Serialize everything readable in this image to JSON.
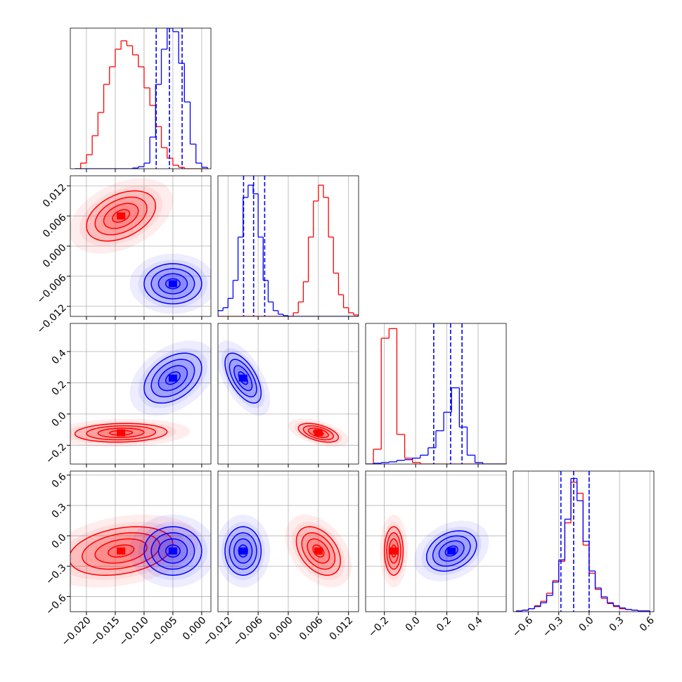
{
  "chart_data": {
    "type": "corner",
    "series": [
      {
        "color": "#ff0000"
      },
      {
        "color": "#0000ff"
      }
    ],
    "params": [
      {
        "lim": [
          -0.0228,
          0.0016
        ],
        "ticks": [
          {
            "value": -0.02,
            "label": "−0.020"
          },
          {
            "value": -0.015,
            "label": "−0.015"
          },
          {
            "value": -0.01,
            "label": "−0.010"
          },
          {
            "value": -0.005,
            "label": "−0.005"
          },
          {
            "value": 0,
            "label": "0.000"
          }
        ]
      },
      {
        "lim": [
          -0.014,
          0.014
        ],
        "ticks": [
          {
            "value": -0.012,
            "label": "−0.012"
          },
          {
            "value": -0.006,
            "label": "−0.006"
          },
          {
            "value": 0,
            "label": "0.000"
          },
          {
            "value": 0.006,
            "label": "0.006"
          },
          {
            "value": 0.012,
            "label": "0.012"
          }
        ]
      },
      {
        "lim": [
          -0.32,
          0.58
        ],
        "ticks": [
          {
            "value": -0.2,
            "label": "−0.2"
          },
          {
            "value": 0,
            "label": "0.0"
          },
          {
            "value": 0.2,
            "label": "0.2"
          },
          {
            "value": 0.4,
            "label": "0.4"
          }
        ]
      },
      {
        "lim": [
          -0.75,
          0.64
        ],
        "ticks": [
          {
            "value": -0.6,
            "label": "−0.6"
          },
          {
            "value": -0.3,
            "label": "−0.3"
          },
          {
            "value": 0,
            "label": "0.0"
          },
          {
            "value": 0.3,
            "label": "0.3"
          },
          {
            "value": 0.6,
            "label": "0.6"
          }
        ]
      }
    ],
    "histograms": [
      {
        "ylim": [
          0,
          200
        ],
        "bins": [
          -0.022,
          -0.021,
          -0.02,
          -0.019,
          -0.018,
          -0.017,
          -0.016,
          -0.015,
          -0.014,
          -0.013,
          -0.012,
          -0.011,
          -0.01,
          -0.009,
          -0.008,
          -0.007,
          -0.006,
          -0.005,
          -0.004,
          -0.003,
          -0.002,
          -0.001,
          0,
          0.001
        ],
        "counts": [
          [
            0,
            8,
            20,
            47,
            80,
            120,
            145,
            170,
            182,
            175,
            162,
            145,
            115,
            90,
            60,
            30,
            15,
            5,
            2,
            0,
            0,
            0,
            0
          ],
          [
            0,
            0,
            0,
            0,
            0,
            0,
            0,
            0,
            0,
            0,
            1,
            3,
            8,
            45,
            120,
            170,
            200,
            195,
            150,
            95,
            35,
            8,
            2
          ]
        ],
        "quantiles": [
          -0.0079,
          -0.0056,
          -0.0034
        ]
      },
      {
        "ylim": [
          0,
          195
        ],
        "bins": [
          -0.014,
          -0.013,
          -0.012,
          -0.011,
          -0.01,
          -0.009,
          -0.008,
          -0.007,
          -0.006,
          -0.005,
          -0.004,
          -0.003,
          -0.002,
          -0.001,
          0,
          0.001,
          0.002,
          0.003,
          0.004,
          0.005,
          0.006,
          0.007,
          0.008,
          0.009,
          0.01,
          0.011,
          0.012,
          0.013,
          0.014
        ],
        "counts": [
          [
            0,
            0,
            0,
            0,
            0,
            0,
            0,
            0,
            0,
            0,
            0,
            0,
            0,
            0,
            0,
            5,
            20,
            48,
            110,
            160,
            182,
            165,
            110,
            60,
            30,
            12,
            5,
            2
          ],
          [
            8,
            12,
            25,
            50,
            110,
            165,
            182,
            170,
            110,
            50,
            20,
            8,
            3,
            1,
            0,
            0,
            0,
            0,
            0,
            0,
            0,
            0,
            0,
            0,
            0,
            0,
            0,
            0
          ]
        ],
        "quantiles": [
          -0.0089,
          -0.0069,
          -0.0047
        ]
      },
      {
        "ylim": [
          0,
          190
        ],
        "bins": [
          -0.32,
          -0.27,
          -0.22,
          -0.17,
          -0.12,
          -0.07,
          -0.02,
          0.03,
          0.08,
          0.13,
          0.18,
          0.23,
          0.28,
          0.33,
          0.38,
          0.43,
          0.48,
          0.53,
          0.58
        ],
        "counts": [
          [
            0,
            20,
            170,
            183,
            40,
            8,
            2,
            0,
            0,
            0,
            0,
            0,
            0,
            0,
            0,
            0,
            0,
            0
          ],
          [
            0,
            1,
            2,
            3,
            5,
            6,
            8,
            12,
            22,
            45,
            70,
            103,
            50,
            12,
            2,
            0,
            0,
            0
          ]
        ],
        "quantiles": [
          0.116,
          0.224,
          0.297
        ]
      },
      {
        "ylim": [
          0,
          190
        ],
        "bins": [
          -0.72,
          -0.66,
          -0.6,
          -0.54,
          -0.48,
          -0.42,
          -0.36,
          -0.3,
          -0.24,
          -0.18,
          -0.12,
          -0.06,
          0,
          0.06,
          0.12,
          0.18,
          0.24,
          0.3,
          0.36,
          0.42,
          0.48,
          0.54,
          0.6
        ],
        "counts": [
          [
            1,
            2,
            4,
            8,
            14,
            25,
            42,
            68,
            120,
            175,
            160,
            90,
            52,
            30,
            18,
            11,
            7,
            4,
            3,
            2,
            1,
            1
          ],
          [
            1,
            2,
            4,
            7,
            12,
            22,
            40,
            70,
            125,
            180,
            150,
            95,
            55,
            32,
            20,
            12,
            8,
            5,
            3,
            2,
            1,
            1
          ]
        ],
        "quantiles": [
          -0.279,
          -0.153,
          0
        ]
      }
    ],
    "pairs": [
      {
        "clusters": [
          {
            "center": [
              -0.014,
              0.006
            ],
            "sigma": [
              0.003,
              0.0025
            ],
            "corr": 0.4
          },
          {
            "center": [
              -0.005,
              -0.0075
            ],
            "sigma": [
              0.0025,
              0.002
            ],
            "corr": 0
          }
        ]
      },
      {
        "clusters": [
          {
            "center": [
              -0.014,
              -0.12
            ],
            "sigma": [
              0.004,
              0.03
            ],
            "corr": 0.1
          },
          {
            "center": [
              -0.005,
              0.23
            ],
            "sigma": [
              0.0025,
              0.08
            ],
            "corr": 0.4
          }
        ]
      },
      {
        "clusters": [
          {
            "center": [
              0.006,
              -0.12
            ],
            "sigma": [
              0.002,
              0.03
            ],
            "corr": -0.5
          },
          {
            "center": [
              -0.009,
              0.23
            ],
            "sigma": [
              0.0018,
              0.08
            ],
            "corr": -0.6
          }
        ]
      },
      {
        "clusters": [
          {
            "center": [
              -0.014,
              -0.15
            ],
            "sigma": [
              0.0045,
              0.12
            ],
            "corr": 0.3
          },
          {
            "center": [
              -0.005,
              -0.15
            ],
            "sigma": [
              0.0025,
              0.12
            ],
            "corr": 0
          }
        ]
      },
      {
        "clusters": [
          {
            "center": [
              0.006,
              -0.15
            ],
            "sigma": [
              0.0022,
              0.12
            ],
            "corr": -0.4
          },
          {
            "center": [
              -0.009,
              -0.15
            ],
            "sigma": [
              0.0018,
              0.12
            ],
            "corr": 0
          }
        ]
      },
      {
        "clusters": [
          {
            "center": [
              -0.14,
              -0.15
            ],
            "sigma": [
              0.03,
              0.12
            ],
            "corr": 0
          },
          {
            "center": [
              0.23,
              -0.15
            ],
            "sigma": [
              0.08,
              0.1
            ],
            "corr": 0.3
          }
        ]
      }
    ]
  }
}
